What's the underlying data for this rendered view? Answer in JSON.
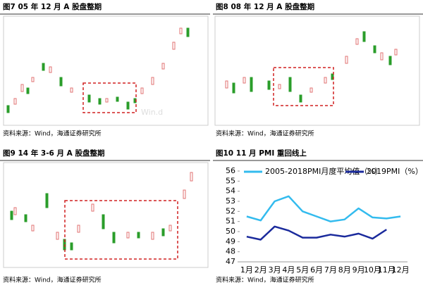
{
  "figures": [
    {
      "title": "图7  05 年 12 月 A 股盘整期",
      "source": "资料来源：Wind，海通证券研究所",
      "watermark": "Win.d"
    },
    {
      "title": "图8  08 年 12 月 A 股盘整期",
      "source": "资料来源：Wind，海通证券研究所"
    },
    {
      "title": "图9  14 年 3-6 月 A 股盘整期",
      "source": "资料来源：Wind，海通证券研究所"
    },
    {
      "title": "图10 11 月 PMI 重回线上",
      "source": "资料来源：Wind，海通证券研究所"
    }
  ],
  "chart_data": {
    "type": "line",
    "categories": [
      "1月",
      "2月",
      "3月",
      "4月",
      "5月",
      "6月",
      "7月",
      "8月",
      "9月",
      "10月",
      "11月",
      "12月"
    ],
    "series": [
      {
        "name": "2005-2018PMI月度平均值（%）",
        "color": "#33bbee",
        "values": [
          51.5,
          51.1,
          53.0,
          53.5,
          52.0,
          51.5,
          51.0,
          51.2,
          52.3,
          51.4,
          51.3,
          51.5
        ]
      },
      {
        "name": "2019PMI（%）",
        "color": "#1a2a9c",
        "values": [
          49.5,
          49.2,
          50.5,
          50.1,
          49.4,
          49.4,
          49.7,
          49.5,
          49.8,
          49.3,
          50.2,
          null
        ]
      }
    ],
    "ylim": [
      47,
      56
    ],
    "yticks": [
      47,
      48,
      49,
      50,
      51,
      52,
      53,
      54,
      55,
      56
    ],
    "grid": false
  }
}
